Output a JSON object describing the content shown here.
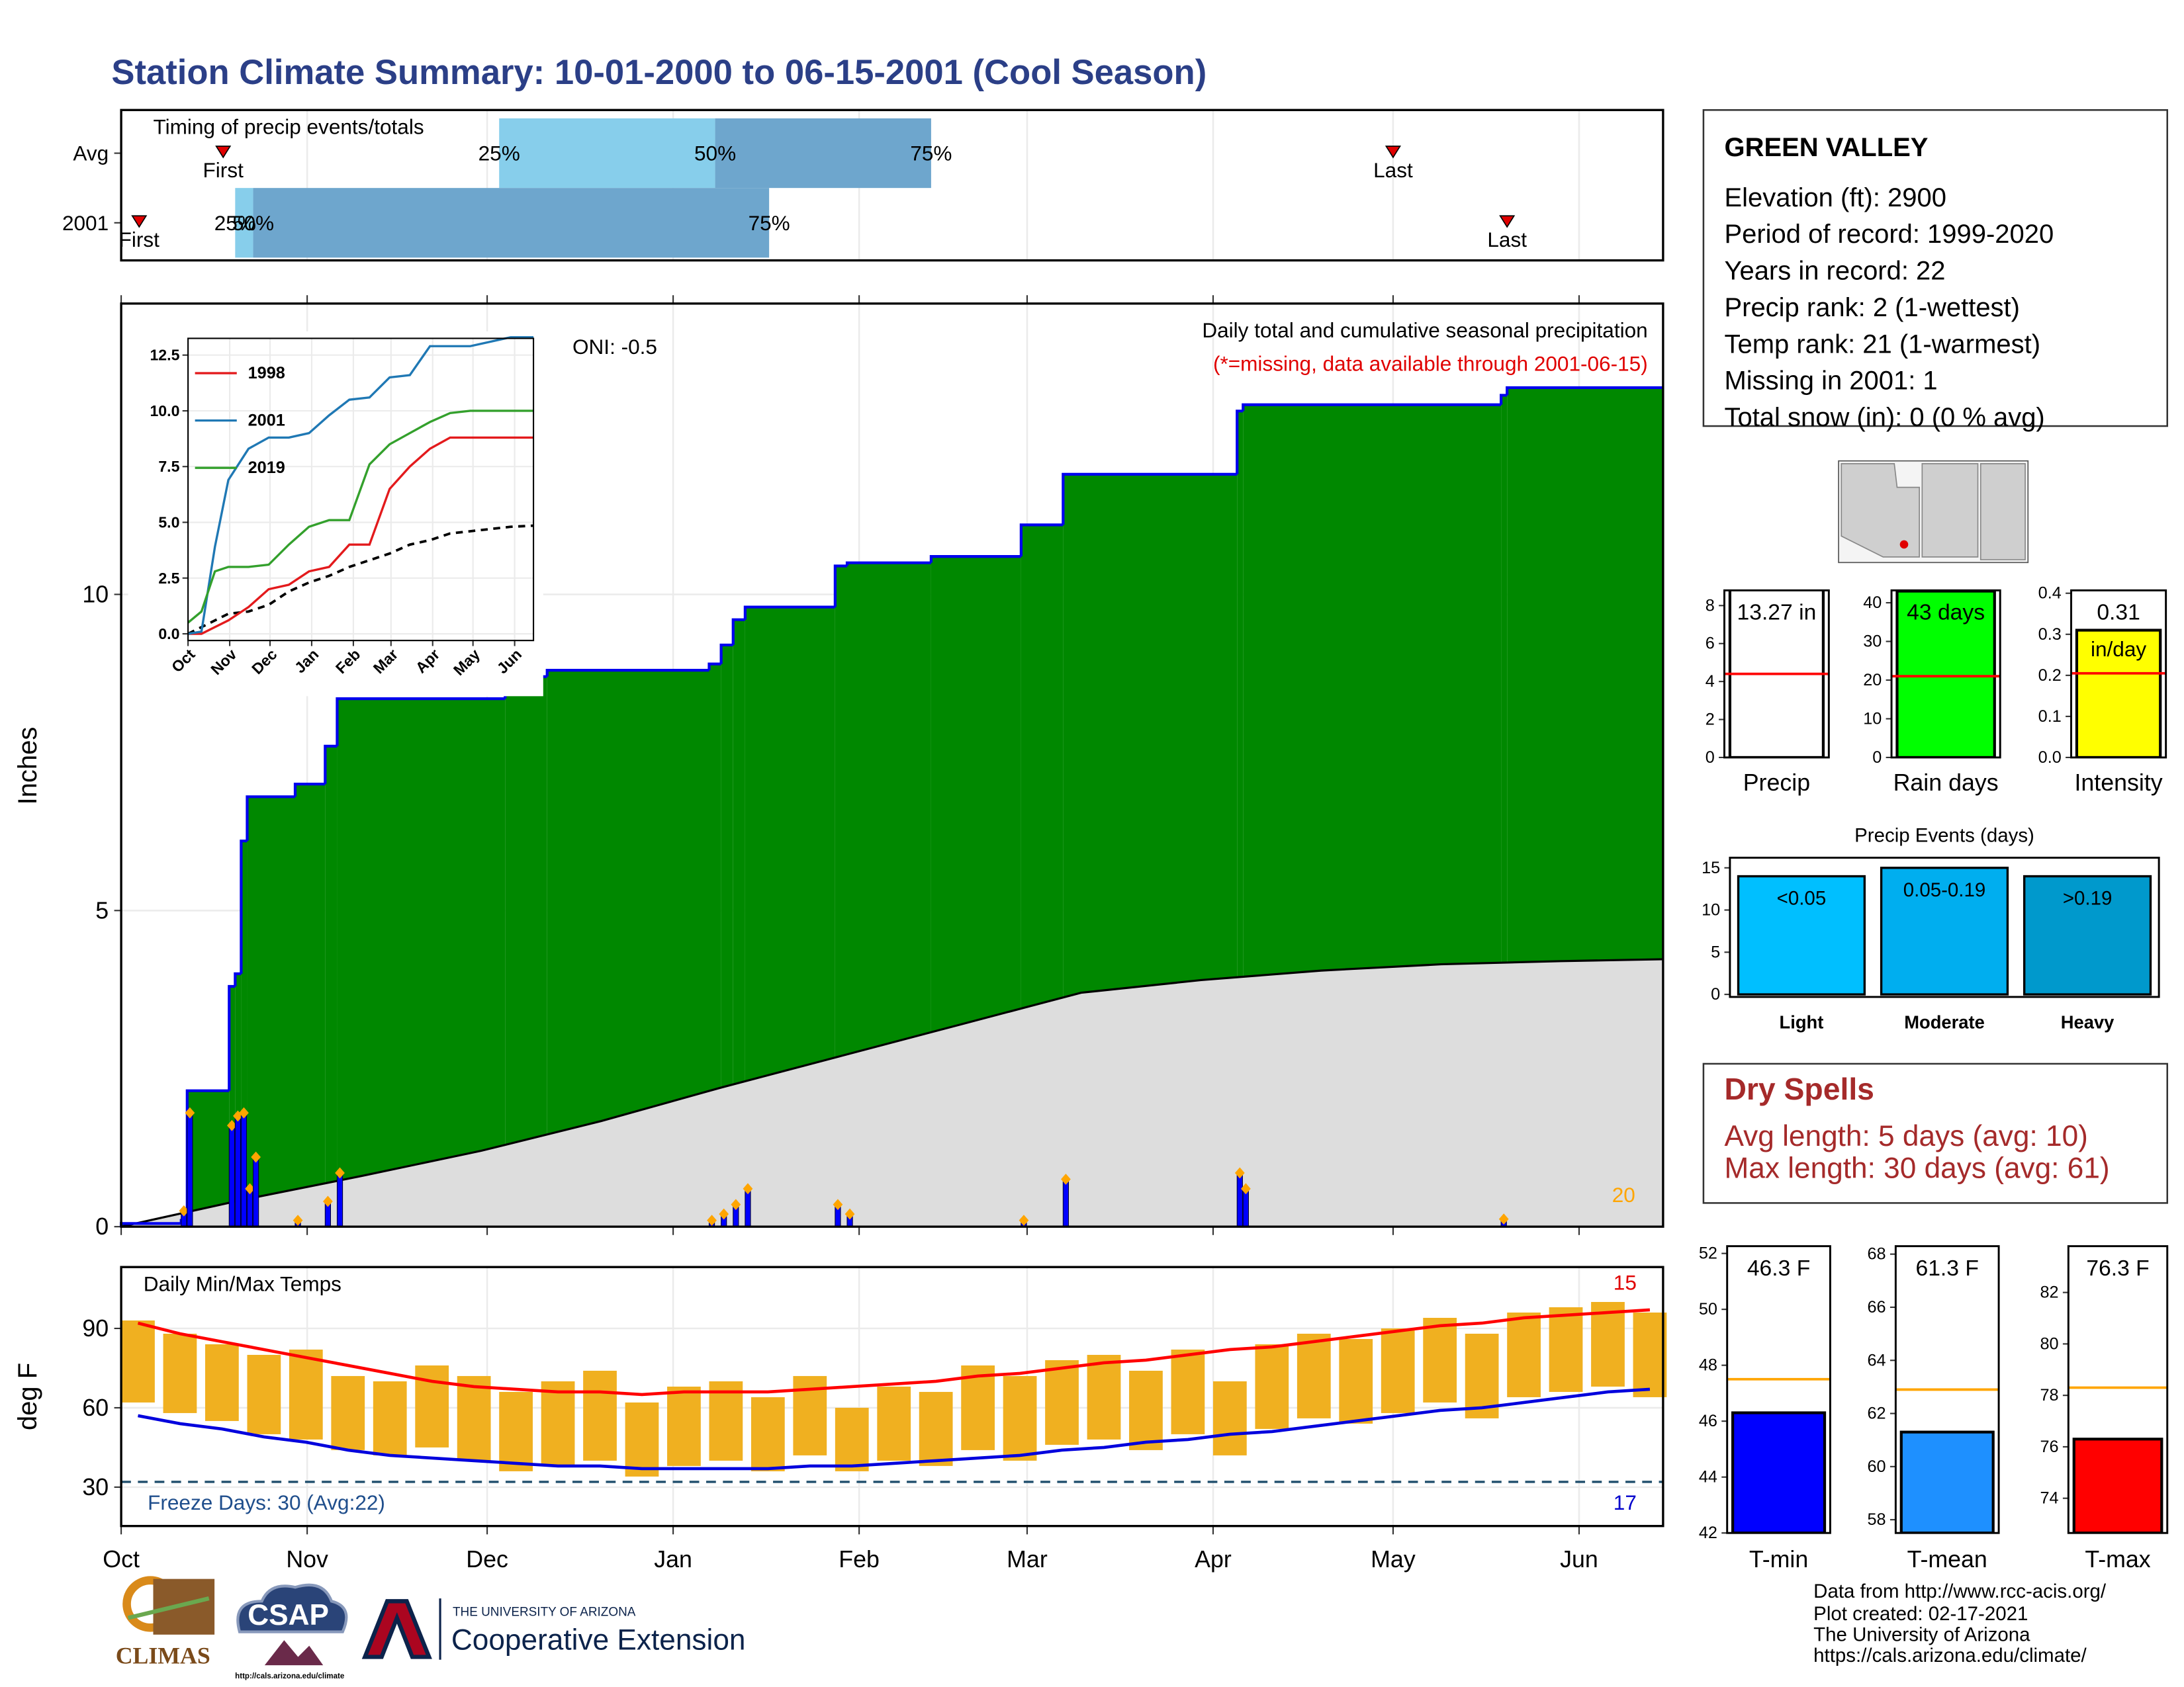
{
  "title": "Station Climate Summary: 10-01-2000 to 06-15-2001 (Cool Season)",
  "station": {
    "name": "GREEN VALLEY",
    "lines": [
      "Elevation (ft): 2900",
      "Period of record: 1999-2020",
      "Years in record: 22",
      "Precip rank: 2 (1-wettest)",
      "Temp rank: 21 (1-warmest)",
      "Missing in 2001: 1",
      "Total snow (in): 0 (0 % avg)"
    ]
  },
  "dry_spells": {
    "title": "Dry Spells",
    "lines": [
      "Avg length: 5 days (avg: 10)",
      "Max length: 30 days (avg: 61)"
    ]
  },
  "footer": [
    "Data from http://www.rcc-acis.org/",
    "Plot created: 02-17-2021",
    "The University of Arizona",
    "https://cals.arizona.edu/climate/"
  ],
  "logos": {
    "climas": "CLIMAS",
    "csap": "CSAP",
    "csap_url": "http://cals.arizona.edu/climate",
    "university": "THE UNIVERSITY OF ARIZONA",
    "extension": "Cooperative Extension"
  },
  "chart_data": [
    {
      "type": "timing",
      "title": "Timing of precip events/totals",
      "xlim": [
        0,
        257
      ],
      "marker_labels": [
        "First",
        "25%",
        "50%",
        "75%",
        "Last"
      ],
      "series": [
        {
          "name": "Avg",
          "values": [
            17,
            63,
            99,
            135,
            212
          ]
        },
        {
          "name": "2001",
          "values": [
            3,
            19,
            22,
            108,
            231
          ]
        }
      ],
      "colors": [
        "#87ceeb",
        "#6ea6cd"
      ],
      "marker_color": "#e00000"
    },
    {
      "type": "step_area",
      "ylabel": "Inches",
      "xlim": [
        0,
        257
      ],
      "ylim": [
        0,
        14.6
      ],
      "xticks": [
        0,
        31,
        61,
        92,
        123,
        151,
        182,
        212,
        243
      ],
      "yticks": [
        0,
        5,
        10
      ],
      "grid": true,
      "annotations": [
        "ONI: -0.5",
        "Daily total and cumulative seasonal precipitation",
        "(*=missing, data available through 2001-06-15)",
        "20"
      ],
      "annotation_colors": [
        "#000000",
        "#000000",
        "#e00000",
        "#ffa500"
      ],
      "cumulative": {
        "color": "#008800",
        "edge": "#0000ee",
        "x": [
          0,
          10,
          11,
          18,
          19,
          20,
          21,
          29,
          34,
          36,
          64,
          71,
          98,
          100,
          102,
          104,
          119,
          121,
          135,
          150,
          157,
          186,
          187,
          230,
          231
        ],
        "values": [
          0.05,
          0.1,
          2.15,
          3.8,
          4.0,
          6.1,
          6.8,
          7.0,
          7.6,
          8.35,
          8.7,
          8.8,
          8.9,
          9.2,
          9.6,
          9.8,
          10.45,
          10.5,
          10.6,
          11.1,
          11.9,
          12.9,
          13.0,
          13.15,
          13.27
        ]
      },
      "normal": {
        "color": "#dddddd",
        "edge": "#000000",
        "x": [
          0,
          20,
          40,
          60,
          80,
          100,
          120,
          140,
          160,
          180,
          200,
          220,
          240,
          257
        ],
        "values": [
          0,
          0.42,
          0.8,
          1.2,
          1.67,
          2.2,
          2.7,
          3.2,
          3.7,
          3.9,
          4.05,
          4.15,
          4.2,
          4.23
        ]
      },
      "daily": {
        "color": "#0000ff",
        "marker_color": "#ffa500",
        "x": [
          10,
          11,
          18,
          19,
          20,
          21,
          22,
          29,
          34,
          36,
          98,
          100,
          102,
          104,
          119,
          121,
          150,
          157,
          186,
          187,
          230
        ],
        "values": [
          0.25,
          1.8,
          1.6,
          1.75,
          1.8,
          0.6,
          1.1,
          0.1,
          0.4,
          0.85,
          0.1,
          0.2,
          0.35,
          0.6,
          0.35,
          0.2,
          0.1,
          0.75,
          0.85,
          0.6,
          0.12
        ]
      }
    },
    {
      "type": "line",
      "xlim": [
        0,
        257
      ],
      "ylim": [
        -0.3,
        13.25
      ],
      "xticks": [
        {
          "value": 0,
          "label": "Oct"
        },
        {
          "value": 31,
          "label": "Nov"
        },
        {
          "value": 61,
          "label": "Dec"
        },
        {
          "value": 92,
          "label": "Jan"
        },
        {
          "value": 123,
          "label": "Feb"
        },
        {
          "value": 151,
          "label": "Mar"
        },
        {
          "value": 182,
          "label": "Apr"
        },
        {
          "value": 212,
          "label": "May"
        },
        {
          "value": 243,
          "label": "Jun"
        }
      ],
      "yticks": [
        {
          "value": 0,
          "label": "0.0"
        },
        2.5,
        {
          "value": 5,
          "label": "5.0"
        },
        7.5,
        {
          "value": 10,
          "label": "10.0"
        },
        12.5
      ],
      "x": [
        0,
        10,
        20,
        30,
        45,
        60,
        75,
        90,
        105,
        120,
        135,
        150,
        165,
        180,
        195,
        210,
        225,
        240,
        257
      ],
      "series": [
        {
          "name": "1998",
          "color": "#e31a1c",
          "values": [
            0,
            0,
            0.3,
            0.6,
            1.2,
            2.0,
            2.2,
            2.8,
            3.0,
            4.0,
            4.0,
            6.5,
            7.5,
            8.3,
            8.8,
            8.8,
            8.8,
            8.8,
            8.8
          ]
        },
        {
          "name": "2001",
          "color": "#1f78b4",
          "values": [
            0,
            0.1,
            3.9,
            6.9,
            8.3,
            8.8,
            8.8,
            9.0,
            9.8,
            10.5,
            10.6,
            11.5,
            11.6,
            12.9,
            12.9,
            12.9,
            13.1,
            13.3,
            13.3
          ]
        },
        {
          "name": "2019",
          "color": "#33a02c",
          "values": [
            0.5,
            1.0,
            2.8,
            3.0,
            3.0,
            3.1,
            4.0,
            4.8,
            5.1,
            5.1,
            7.6,
            8.5,
            9.0,
            9.5,
            9.9,
            10.0,
            10.0,
            10.0,
            10.0
          ]
        }
      ],
      "average": {
        "color": "#000000",
        "values": [
          0,
          0.3,
          0.6,
          0.9,
          1.0,
          1.3,
          1.9,
          2.3,
          2.6,
          3.0,
          3.3,
          3.6,
          4.0,
          4.2,
          4.5,
          4.6,
          4.7,
          4.8,
          4.85
        ]
      }
    },
    {
      "type": "minmax",
      "title": "Daily Min/Max Temps",
      "ylabel": "deg F",
      "xlim": [
        0,
        257
      ],
      "ylim": [
        15.3,
        113.2
      ],
      "xticks": [
        {
          "value": 0,
          "label": "Oct"
        },
        {
          "value": 31,
          "label": "Nov"
        },
        {
          "value": 61,
          "label": "Dec"
        },
        {
          "value": 92,
          "label": "Jan"
        },
        {
          "value": 123,
          "label": "Feb"
        },
        {
          "value": 151,
          "label": "Mar"
        },
        {
          "value": 182,
          "label": "Apr"
        },
        {
          "value": 212,
          "label": "May"
        },
        {
          "value": 243,
          "label": "Jun"
        }
      ],
      "yticks": [
        30,
        60,
        90
      ],
      "grid": true,
      "freeze": 32,
      "annotations": [
        "Freeze Days: 30 (Avg:22)",
        "17",
        "15"
      ],
      "annotation_colors": [
        "#1f4e8c",
        "#0000cc",
        "#e00000"
      ],
      "bar_color": "#f0b020",
      "max_color": "#ff0000",
      "min_color": "#0000dd",
      "freeze_color": "#1f4e6c",
      "x": [
        0,
        7,
        14,
        21,
        28,
        35,
        42,
        49,
        56,
        63,
        70,
        77,
        84,
        91,
        98,
        105,
        112,
        119,
        126,
        133,
        140,
        147,
        154,
        161,
        168,
        175,
        182,
        189,
        196,
        203,
        210,
        217,
        224,
        231,
        238,
        245,
        252
      ],
      "max": [
        93,
        88,
        84,
        80,
        82,
        72,
        70,
        76,
        72,
        66,
        70,
        74,
        62,
        68,
        70,
        64,
        72,
        60,
        68,
        66,
        76,
        72,
        78,
        80,
        74,
        82,
        70,
        84,
        88,
        86,
        90,
        94,
        88,
        96,
        98,
        100,
        96
      ],
      "min": [
        62,
        58,
        55,
        50,
        48,
        44,
        42,
        45,
        40,
        36,
        38,
        40,
        34,
        38,
        40,
        36,
        42,
        36,
        40,
        38,
        44,
        40,
        46,
        48,
        44,
        50,
        42,
        52,
        56,
        54,
        58,
        62,
        56,
        64,
        66,
        68,
        64
      ],
      "avg_max": [
        92,
        88,
        85,
        82,
        79,
        76,
        73,
        70,
        68,
        67,
        66,
        66,
        65,
        66,
        66,
        66,
        67,
        68,
        69,
        70,
        72,
        73,
        75,
        77,
        78,
        80,
        82,
        83,
        85,
        87,
        89,
        91,
        92,
        94,
        95,
        96,
        97
      ],
      "avg_min": [
        57,
        54,
        52,
        49,
        47,
        44,
        42,
        41,
        40,
        39,
        38,
        38,
        37,
        37,
        37,
        37,
        38,
        38,
        39,
        40,
        41,
        42,
        44,
        45,
        47,
        48,
        50,
        51,
        53,
        55,
        57,
        59,
        60,
        62,
        64,
        66,
        67
      ]
    },
    {
      "type": "bar_ref",
      "label": "Precip",
      "value": 13.27,
      "value_label": "13.27 in",
      "reference": 4.4,
      "ylim": [
        0,
        8.8
      ],
      "yticks": [
        0,
        2,
        4,
        6,
        8
      ],
      "color": "#ffffff",
      "ref_color": "#ff0000"
    },
    {
      "type": "bar_ref",
      "label": "Rain days",
      "value": 43,
      "value_label": "43 days",
      "reference": 21,
      "ylim": [
        0,
        43.2
      ],
      "yticks": [
        0,
        10,
        20,
        30,
        40
      ],
      "color": "#00ff00",
      "ref_color": "#ff0000"
    },
    {
      "type": "bar_ref",
      "label": "Intensity",
      "value": 0.31,
      "value_label": "0.31",
      "unit": "in/day",
      "reference": 0.205,
      "ylim": [
        0,
        0.407
      ],
      "yticks": [
        {
          "value": 0,
          "label": "0.0"
        },
        0.1,
        0.2,
        0.3,
        0.4
      ],
      "color": "#ffff00",
      "ref_color": "#ff0000"
    },
    {
      "type": "bar",
      "title": "Precip Events (days)",
      "categories": [
        "Light",
        "Moderate",
        "Heavy"
      ],
      "bin_labels": [
        "<0.05",
        "0.05-0.19",
        ">0.19"
      ],
      "values": [
        14,
        15,
        14
      ],
      "ylim": [
        -0.3,
        16.2
      ],
      "yticks": [
        0,
        5,
        10,
        15
      ],
      "colors": [
        "#00bfff",
        "#00aeef",
        "#0099cc"
      ]
    },
    {
      "type": "bar_ref",
      "label": "T-min",
      "value": 46.3,
      "value_label": "46.3 F",
      "reference": 47.5,
      "ylim": [
        42,
        52.26
      ],
      "yticks": [
        42,
        44,
        46,
        48,
        50,
        52
      ],
      "color": "#0000ff",
      "ref_color": "#ffa500"
    },
    {
      "type": "bar_ref",
      "label": "T-mean",
      "value": 61.3,
      "value_label": "61.3 F",
      "reference": 62.9,
      "ylim": [
        57.5,
        68.3
      ],
      "yticks": [
        58,
        60,
        62,
        64,
        66,
        68
      ],
      "color": "#1e90ff",
      "ref_color": "#ffa500"
    },
    {
      "type": "bar_ref",
      "label": "T-max",
      "value": 76.3,
      "value_label": "76.3 F",
      "reference": 78.3,
      "ylim": [
        72.65,
        83.8
      ],
      "yticks": [
        74,
        76,
        78,
        80,
        82
      ],
      "color": "#ff0000",
      "ref_color": "#ffa500"
    }
  ]
}
